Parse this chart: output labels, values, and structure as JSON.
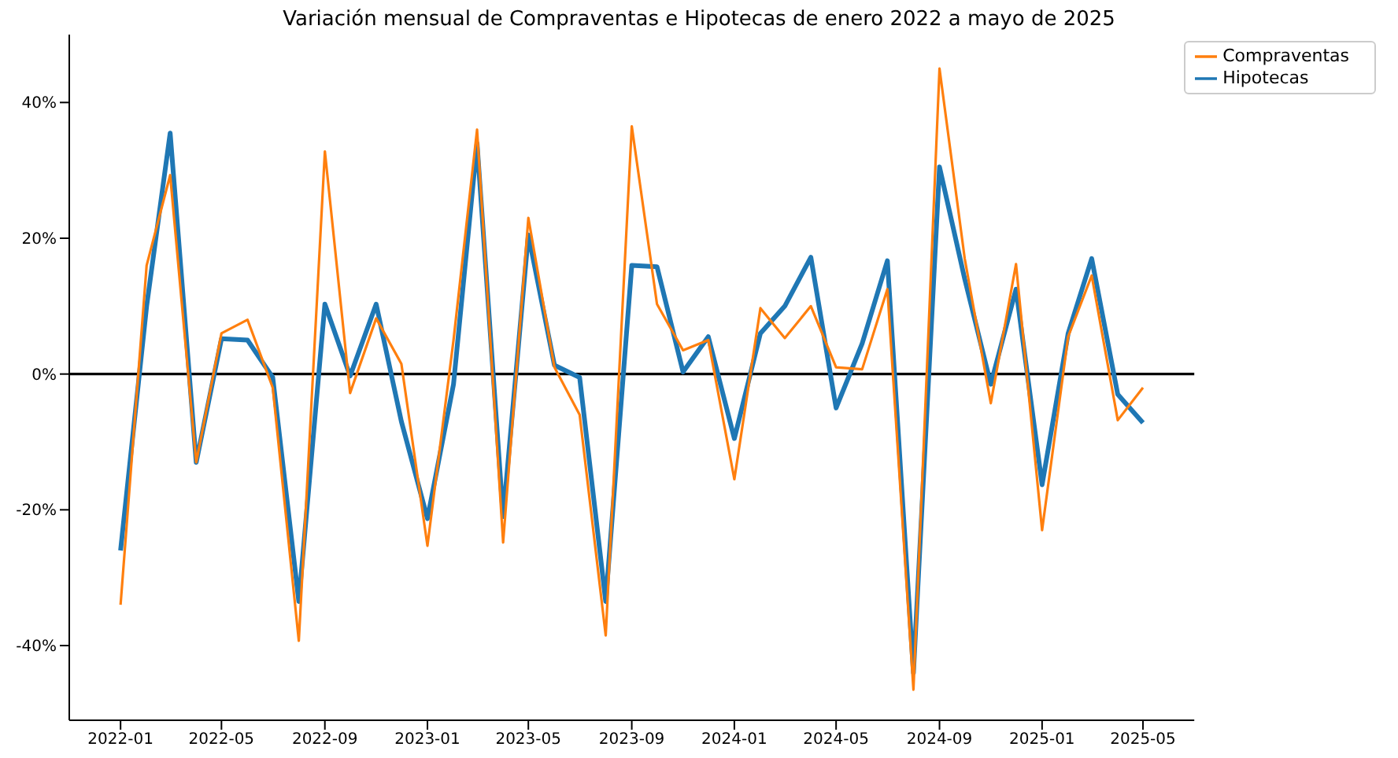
{
  "chart_data": {
    "type": "line",
    "title": "Variación mensual de Compraventas e Hipotecas de enero 2022 a mayo de 2025",
    "x": [
      "2022-01",
      "2022-02",
      "2022-03",
      "2022-04",
      "2022-05",
      "2022-06",
      "2022-07",
      "2022-08",
      "2022-09",
      "2022-10",
      "2022-11",
      "2022-12",
      "2023-01",
      "2023-02",
      "2023-03",
      "2023-04",
      "2023-05",
      "2023-06",
      "2023-07",
      "2023-08",
      "2023-09",
      "2023-10",
      "2023-11",
      "2023-12",
      "2024-01",
      "2024-02",
      "2024-03",
      "2024-04",
      "2024-05",
      "2024-06",
      "2024-07",
      "2024-08",
      "2024-09",
      "2024-10",
      "2024-11",
      "2024-12",
      "2025-01",
      "2025-02",
      "2025-03",
      "2025-04",
      "2025-05"
    ],
    "series": [
      {
        "name": "Hipotecas",
        "color": "#1f77b4",
        "values": [
          -26,
          10,
          35.5,
          -13,
          5.2,
          5,
          -0.5,
          -33.5,
          10.3,
          -0.3,
          10.3,
          -7,
          -21.3,
          -1.5,
          34,
          -21,
          20.5,
          1.3,
          -0.5,
          -33.5,
          16,
          15.8,
          0.3,
          5.5,
          -9.5,
          6,
          10,
          17.2,
          -5,
          4.5,
          16.7,
          -44,
          30.5,
          14,
          -1.5,
          12.5,
          -16.3,
          6,
          17,
          -3,
          -7.2
        ]
      },
      {
        "name": "Compraventas",
        "color": "#ff7f0e",
        "values": [
          -34,
          16,
          29.3,
          -13,
          6,
          8,
          -2,
          -39.3,
          32.8,
          -2.8,
          8.2,
          1.5,
          -25.3,
          5,
          36,
          -24.8,
          23,
          1,
          -6,
          -38.5,
          36.5,
          10.3,
          3.5,
          5,
          -15.5,
          9.7,
          5.3,
          10,
          1,
          0.7,
          12.5,
          -46.5,
          45,
          17,
          -4.3,
          16.2,
          -23,
          5.5,
          14.5,
          -6.8,
          -2
        ]
      }
    ],
    "xlim": [
      "2021-11",
      "2025-07"
    ],
    "xticks": [
      "2022-01",
      "2022-05",
      "2022-09",
      "2023-01",
      "2023-05",
      "2023-09",
      "2024-01",
      "2024-05",
      "2024-09",
      "2025-01",
      "2025-05"
    ],
    "ylim": [
      -51,
      50
    ],
    "yticks": [
      {
        "value": -40,
        "label": "-40%"
      },
      {
        "value": -20,
        "label": "-20%"
      },
      {
        "value": 0,
        "label": "0%"
      },
      {
        "value": 20,
        "label": "20%"
      },
      {
        "value": 40,
        "label": "40%"
      }
    ],
    "ref_lines": [
      {
        "axis": "y",
        "value": 0,
        "color": "#000000"
      }
    ],
    "legend": "top right",
    "marker": "none",
    "line_style": "solid"
  }
}
